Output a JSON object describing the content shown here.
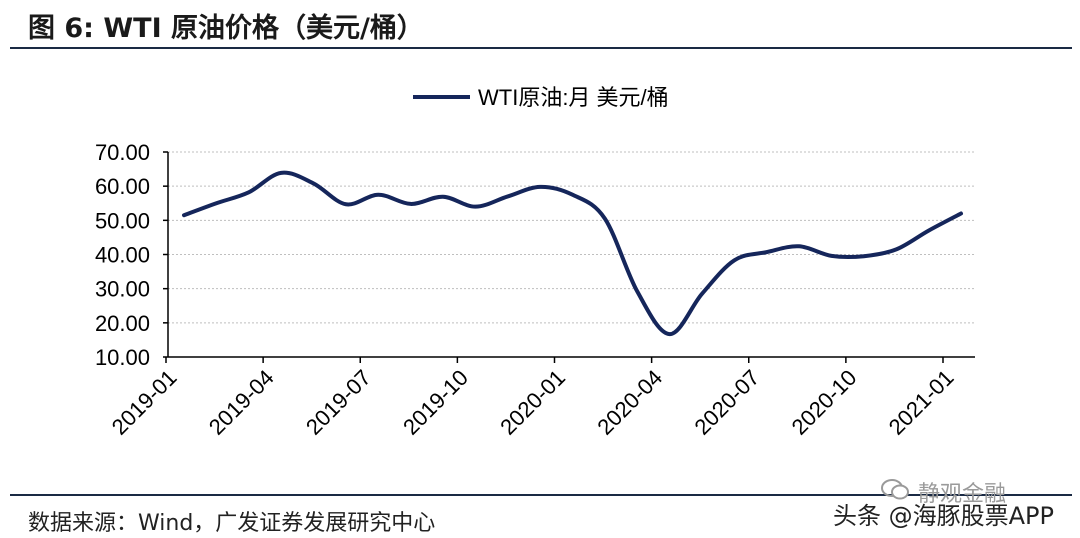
{
  "figure": {
    "title": "图 6:  WTI 原油价格（美元/桶）",
    "source": "数据来源：Wind，广发证券发展研究中心",
    "watermark": "头条 @海豚股票APP",
    "watermark_faint": "静观金融"
  },
  "colors": {
    "series": "#15265b",
    "grid": "#bfbfbf",
    "axis": "#000000",
    "rule": "#1a2a44"
  },
  "icons": {
    "watermark_logo": "chat-bubble-icon"
  },
  "chart_data": {
    "type": "line",
    "title": "",
    "xlabel": "",
    "ylabel": "",
    "legend": {
      "position": "top-center",
      "entries": [
        "WTI原油:月 美元/桶"
      ]
    },
    "ylim": [
      10,
      70
    ],
    "yticks": [
      "10.00",
      "20.00",
      "30.00",
      "40.00",
      "50.00",
      "60.00",
      "70.00"
    ],
    "xticks": [
      "2019-01",
      "2019-04",
      "2019-07",
      "2019-10",
      "2020-01",
      "2020-04",
      "2020-07",
      "2020-10",
      "2021-01"
    ],
    "grid": true,
    "series": [
      {
        "name": "WTI原油:月 美元/桶",
        "x": [
          "2019-01",
          "2019-02",
          "2019-03",
          "2019-04",
          "2019-05",
          "2019-06",
          "2019-07",
          "2019-08",
          "2019-09",
          "2019-10",
          "2019-11",
          "2019-12",
          "2020-01",
          "2020-02",
          "2020-03",
          "2020-04",
          "2020-05",
          "2020-06",
          "2020-07",
          "2020-08",
          "2020-09",
          "2020-10",
          "2020-11",
          "2020-12",
          "2021-01"
        ],
        "values": [
          51.5,
          55.0,
          58.2,
          63.9,
          60.8,
          54.7,
          57.5,
          54.8,
          56.9,
          54.0,
          57.0,
          59.8,
          57.5,
          50.5,
          29.2,
          16.7,
          28.5,
          38.3,
          40.7,
          42.4,
          39.6,
          39.5,
          41.5,
          47.0,
          52.0
        ]
      }
    ]
  }
}
